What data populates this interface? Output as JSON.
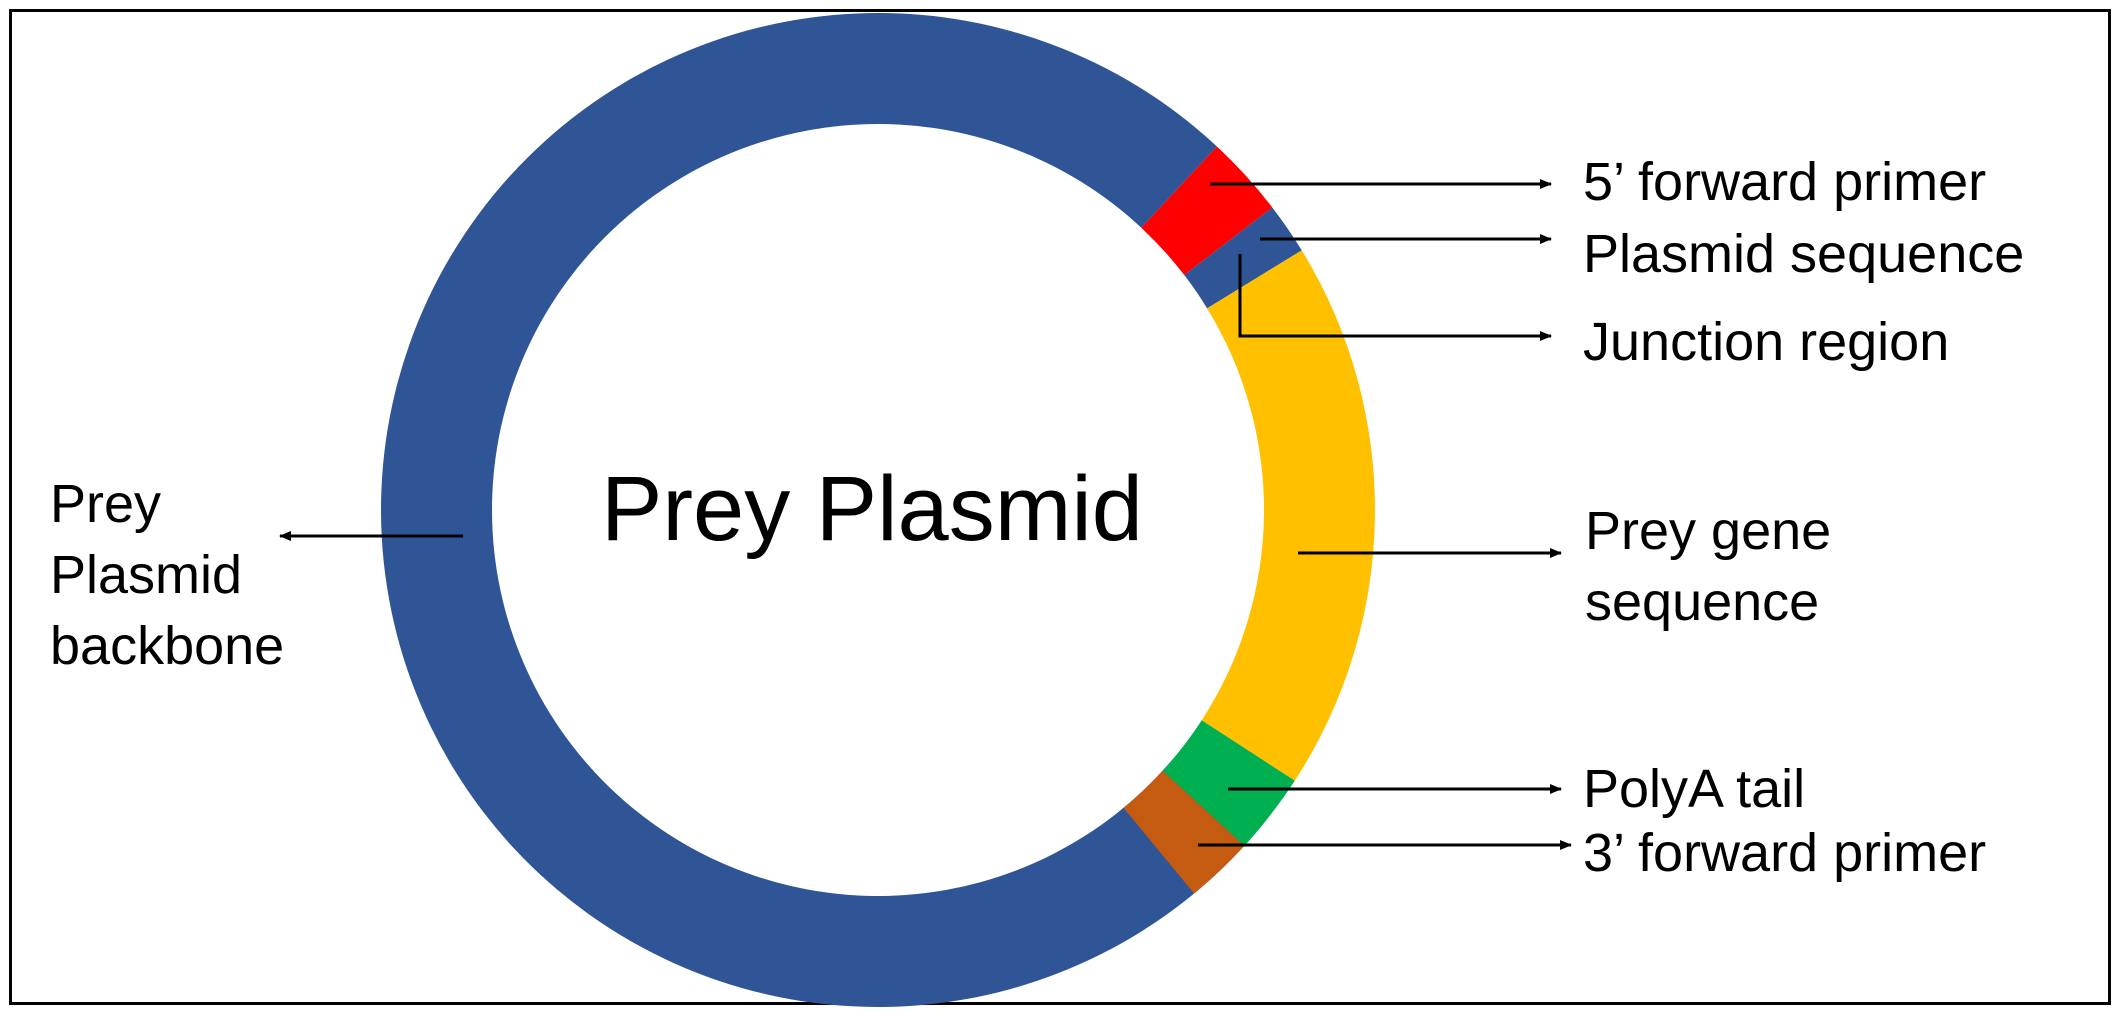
{
  "title": "Prey Plasmid",
  "labels": {
    "forward_primer_5": "5’ forward primer",
    "plasmid_sequence": "Plasmid sequence",
    "junction_region": "Junction region",
    "prey_gene_line1": "Prey gene",
    "prey_gene_line2": "sequence",
    "polya_tail": "PolyA tail",
    "forward_primer_3": "3’ forward primer",
    "backbone_line1": "Prey",
    "backbone_line2": "Plasmid",
    "backbone_line3": "backbone"
  },
  "segments": [
    {
      "id": "backbone",
      "color": "#2f5597"
    },
    {
      "id": "forward-primer-5",
      "color": "#ff0000"
    },
    {
      "id": "plasmid-sequence",
      "color": "#2f5597"
    },
    {
      "id": "prey-gene",
      "color": "#ffc000"
    },
    {
      "id": "polya-tail",
      "color": "#00b050"
    },
    {
      "id": "forward-primer-3",
      "color": "#c55a11"
    }
  ]
}
